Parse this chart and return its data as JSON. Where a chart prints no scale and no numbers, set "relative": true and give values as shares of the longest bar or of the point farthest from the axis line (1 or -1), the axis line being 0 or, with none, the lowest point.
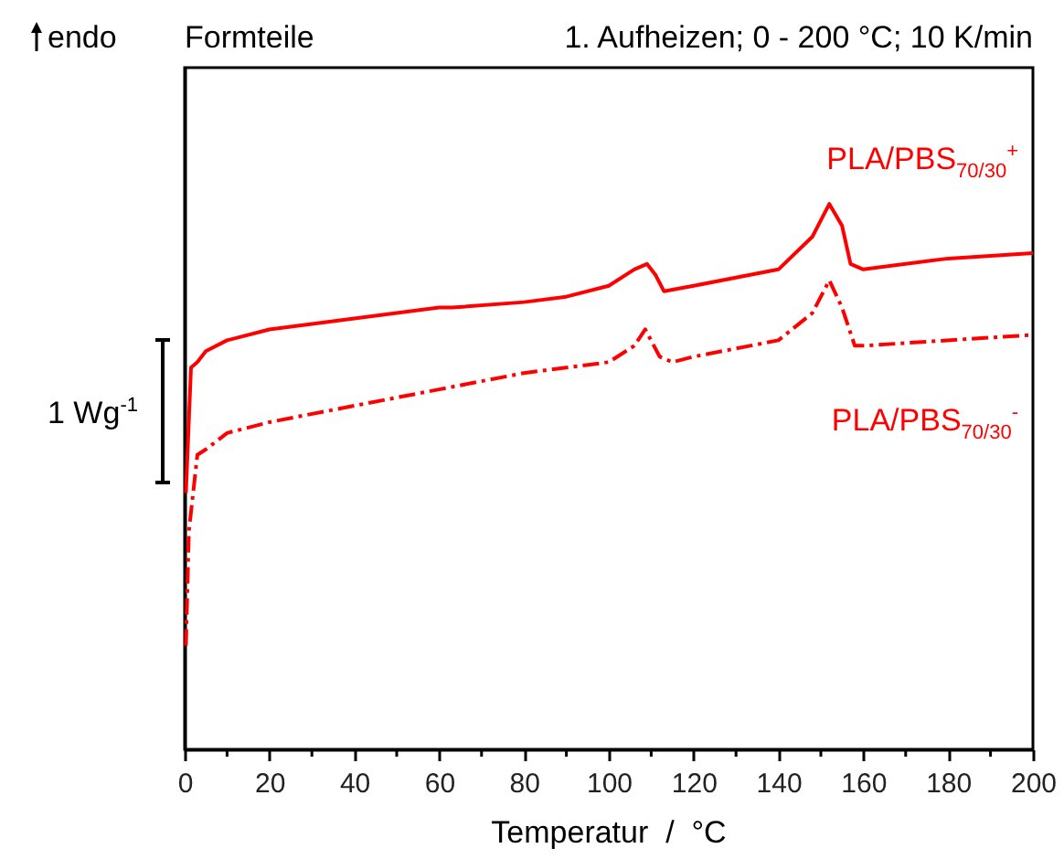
{
  "chart_data": {
    "type": "line",
    "title": "Formteile",
    "subtitle": "1. Aufheizen; 0 - 200 °C; 10 K/min",
    "xlabel": "Temperatur  /  °C",
    "annotations": [
      "endo",
      "1 Wg$^{-1}$"
    ],
    "relative": true,
    "legend": false,
    "grid": false,
    "xlim": [
      0,
      200
    ],
    "xticks": [
      0,
      {
        "value": 10,
        "label": null
      },
      20,
      {
        "value": 30,
        "label": null
      },
      40,
      {
        "value": 50,
        "label": null
      },
      60,
      {
        "value": 70,
        "label": null
      },
      80,
      {
        "value": 90,
        "label": null
      },
      100,
      {
        "value": 110,
        "label": null
      },
      120,
      {
        "value": 130,
        "label": null
      },
      140,
      {
        "value": 150,
        "label": null
      },
      160,
      {
        "value": 170,
        "label": null
      },
      180,
      {
        "value": 190,
        "label": null
      },
      200
    ],
    "series": [
      {
        "name": "PLA/PBS$_{70/30}$$^{+}$",
        "color": "#ff0000",
        "line_style": "solid",
        "x": [
          0.3,
          1.5,
          3,
          5,
          10,
          20,
          40,
          60,
          63,
          80,
          90,
          100,
          106,
          109,
          111,
          113,
          120,
          140,
          148,
          152,
          155,
          157,
          160,
          180,
          200
        ],
        "values": [
          0.47,
          0.7,
          0.71,
          0.73,
          0.75,
          0.77,
          0.79,
          0.81,
          0.81,
          0.82,
          0.83,
          0.85,
          0.88,
          0.89,
          0.87,
          0.84,
          0.85,
          0.88,
          0.94,
          1.0,
          0.96,
          0.89,
          0.88,
          0.9,
          0.91
        ]
      },
      {
        "name": "PLA/PBS$_{70/30}$$^{-}$",
        "color": "#ff0000",
        "line_style": "dashed",
        "x": [
          0.3,
          1,
          3,
          5,
          10,
          20,
          40,
          60,
          80,
          100,
          106,
          108.6,
          112,
          115,
          120,
          140,
          148,
          152,
          155,
          158,
          160,
          200
        ],
        "values": [
          0.19,
          0.4,
          0.54,
          0.55,
          0.58,
          0.6,
          0.63,
          0.66,
          0.69,
          0.71,
          0.74,
          0.77,
          0.72,
          0.71,
          0.72,
          0.75,
          0.8,
          0.86,
          0.81,
          0.74,
          0.74,
          0.76
        ]
      }
    ]
  }
}
